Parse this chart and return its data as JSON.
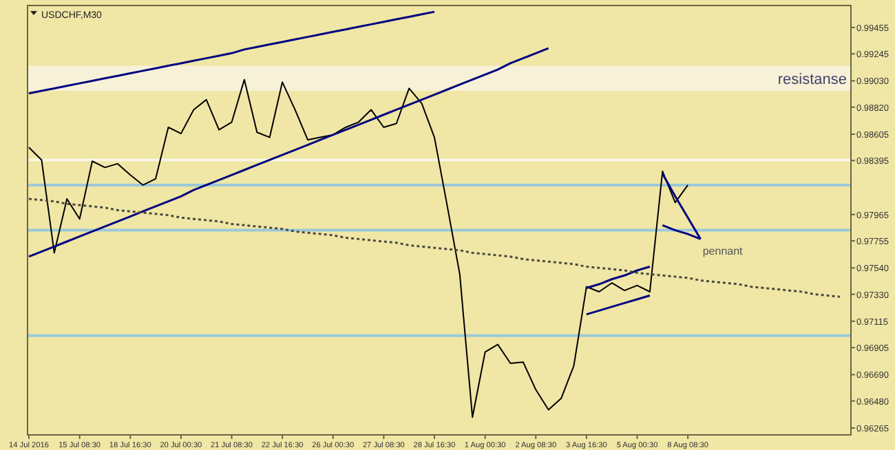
{
  "chart_data": {
    "type": "line",
    "title": "USDCHF,M30",
    "marker": "none",
    "grid": false,
    "categories": [
      "14 Jul 2016",
      null,
      null,
      null,
      "15 Jul 08:30",
      null,
      null,
      null,
      "18 Jul 16:30",
      null,
      null,
      null,
      "20 Jul 00:30",
      null,
      null,
      null,
      "21 Jul 08:30",
      null,
      null,
      null,
      "22 Jul 16:30",
      null,
      null,
      null,
      "26 Jul 00:30",
      null,
      null,
      null,
      "27 Jul 08:30",
      null,
      null,
      null,
      "28 Jul 16:30",
      null,
      null,
      null,
      "1 Aug 00:30",
      null,
      null,
      null,
      "2 Aug 08:30",
      null,
      null,
      null,
      "3 Aug 16:30",
      null,
      null,
      null,
      "5 Aug 00:30",
      null,
      null,
      null,
      "8 Aug 08:30",
      null,
      null,
      null,
      null,
      null,
      null,
      null,
      null,
      null,
      null,
      null,
      null
    ],
    "ylim": [
      0.9621,
      0.9963
    ],
    "yticks": [
      {
        "value": 0.99455,
        "label": "0.99455"
      },
      {
        "value": 0.99245,
        "label": "0.99245"
      },
      {
        "value": 0.9903,
        "label": "0.99030"
      },
      {
        "value": 0.9882,
        "label": "0.98820"
      },
      {
        "value": 0.98605,
        "label": "0.98605"
      },
      {
        "value": 0.98395,
        "label": "0.98395"
      },
      {
        "value": 0.97965,
        "label": "0.97965"
      },
      {
        "value": 0.97755,
        "label": "0.97755"
      },
      {
        "value": 0.9754,
        "label": "0.97540"
      },
      {
        "value": 0.9733,
        "label": "0.97330"
      },
      {
        "value": 0.97115,
        "label": "0.97115"
      },
      {
        "value": 0.96905,
        "label": "0.96905"
      },
      {
        "value": 0.9669,
        "label": "0.96690"
      },
      {
        "value": 0.9648,
        "label": "0.96480"
      },
      {
        "value": 0.96265,
        "label": "0.96265"
      }
    ],
    "series": [
      {
        "color": "#000000",
        "line_style": "solid",
        "values": [
          0.985,
          0.984,
          0.9766,
          0.9809,
          0.9793,
          0.9839,
          0.9834,
          0.9837,
          0.9828,
          0.982,
          0.9825,
          0.9866,
          0.9861,
          0.988,
          0.9888,
          0.9864,
          0.987,
          0.9904,
          0.9862,
          0.9858,
          0.9902,
          0.988,
          0.9856,
          0.9858,
          0.986,
          0.9866,
          0.987,
          0.988,
          0.9866,
          0.9869,
          0.9897,
          0.9885,
          0.9858,
          0.9804,
          0.9749,
          0.9635,
          0.9687,
          0.9693,
          0.9678,
          0.9679,
          0.9657,
          0.9641,
          0.965,
          0.9676,
          0.9739,
          0.9735,
          0.9742,
          0.9736,
          0.974,
          0.9735,
          0.9831,
          0.9806,
          0.982,
          null,
          null,
          null,
          null,
          null,
          null,
          null,
          null,
          null,
          null,
          null,
          null
        ]
      },
      {
        "color": "#000080",
        "line_style": "solid",
        "values": [
          0.9893,
          0.9895,
          0.9897,
          0.9899,
          0.9901,
          0.9903,
          0.9905,
          0.9907,
          0.9909,
          0.9911,
          0.9913,
          0.9915,
          0.9917,
          0.9919,
          0.9921,
          0.9923,
          0.9925,
          0.9928,
          0.993,
          0.9932,
          0.9934,
          0.9936,
          0.9938,
          0.994,
          0.9942,
          0.9944,
          0.9946,
          0.9948,
          0.995,
          0.9952,
          0.9954,
          0.9956,
          0.9958,
          null,
          null,
          null,
          null,
          null,
          null,
          null,
          null,
          null,
          null,
          null,
          null,
          null,
          null,
          null,
          null,
          null,
          null,
          null,
          null,
          null,
          null,
          null,
          null,
          null,
          null,
          null,
          null,
          null,
          null,
          null,
          null
        ]
      },
      {
        "color": "#000080",
        "line_style": "solid",
        "values": [
          0.9763,
          0.9767,
          0.9771,
          0.9775,
          0.9779,
          0.9783,
          0.9787,
          0.9791,
          0.9795,
          0.9799,
          0.9803,
          0.9807,
          0.9811,
          0.9816,
          0.982,
          0.9824,
          0.9828,
          0.9832,
          0.9836,
          0.984,
          0.9844,
          0.9848,
          0.9852,
          0.9856,
          0.986,
          0.9864,
          0.9868,
          0.9872,
          0.9876,
          0.988,
          0.9884,
          0.9888,
          0.9892,
          0.9896,
          0.99,
          0.9904,
          0.9908,
          0.9912,
          0.9917,
          0.9921,
          0.9925,
          0.9929,
          null,
          null,
          null,
          null,
          null,
          null,
          null,
          null,
          null,
          null,
          null,
          null,
          null,
          null,
          null,
          null,
          null,
          null,
          null,
          null,
          null,
          null,
          null
        ]
      },
      {
        "color": "#000080",
        "line_style": "solid",
        "values": [
          null,
          null,
          null,
          null,
          null,
          null,
          null,
          null,
          null,
          null,
          null,
          null,
          null,
          null,
          null,
          null,
          null,
          null,
          null,
          null,
          null,
          null,
          null,
          null,
          null,
          null,
          null,
          null,
          null,
          null,
          null,
          null,
          null,
          null,
          null,
          null,
          null,
          null,
          null,
          null,
          null,
          null,
          null,
          null,
          0.9738,
          0.9741,
          0.9745,
          0.9748,
          0.9752,
          0.9755,
          null,
          null,
          null,
          null,
          null,
          null,
          null,
          null,
          null,
          null,
          null,
          null,
          null,
          null,
          null
        ]
      },
      {
        "color": "#000080",
        "line_style": "solid",
        "values": [
          null,
          null,
          null,
          null,
          null,
          null,
          null,
          null,
          null,
          null,
          null,
          null,
          null,
          null,
          null,
          null,
          null,
          null,
          null,
          null,
          null,
          null,
          null,
          null,
          null,
          null,
          null,
          null,
          null,
          null,
          null,
          null,
          null,
          null,
          null,
          null,
          null,
          null,
          null,
          null,
          null,
          null,
          null,
          null,
          0.9717,
          0.972,
          0.9723,
          0.9726,
          0.9729,
          0.9732,
          null,
          null,
          null,
          null,
          null,
          null,
          null,
          null,
          null,
          null,
          null,
          null,
          null,
          null,
          null
        ]
      },
      {
        "color": "#000080",
        "line_style": "solid",
        "values": [
          null,
          null,
          null,
          null,
          null,
          null,
          null,
          null,
          null,
          null,
          null,
          null,
          null,
          null,
          null,
          null,
          null,
          null,
          null,
          null,
          null,
          null,
          null,
          null,
          null,
          null,
          null,
          null,
          null,
          null,
          null,
          null,
          null,
          null,
          null,
          null,
          null,
          null,
          null,
          null,
          null,
          null,
          null,
          null,
          null,
          null,
          null,
          null,
          null,
          null,
          0.9829,
          0.9811,
          0.9794,
          0.9777,
          null,
          null,
          null,
          null,
          null,
          null,
          null,
          null,
          null,
          null,
          null
        ]
      },
      {
        "color": "#000080",
        "line_style": "solid",
        "values": [
          null,
          null,
          null,
          null,
          null,
          null,
          null,
          null,
          null,
          null,
          null,
          null,
          null,
          null,
          null,
          null,
          null,
          null,
          null,
          null,
          null,
          null,
          null,
          null,
          null,
          null,
          null,
          null,
          null,
          null,
          null,
          null,
          null,
          null,
          null,
          null,
          null,
          null,
          null,
          null,
          null,
          null,
          null,
          null,
          null,
          null,
          null,
          null,
          null,
          null,
          0.9788,
          0.9784,
          0.9781,
          0.9777,
          null,
          null,
          null,
          null,
          null,
          null,
          null,
          null,
          null,
          null,
          null
        ]
      },
      {
        "color": "#4a4a3a",
        "line_style": "dotted",
        "values": [
          0.9809,
          0.9808,
          0.9807,
          0.9805,
          0.9804,
          0.9803,
          0.9802,
          0.98,
          0.9799,
          0.9798,
          0.9797,
          0.9796,
          0.9794,
          0.9793,
          0.9792,
          0.9791,
          0.9789,
          0.9788,
          0.9787,
          0.9786,
          0.9785,
          0.9783,
          0.9782,
          0.9781,
          0.978,
          0.9778,
          0.9777,
          0.9776,
          0.9775,
          0.9774,
          0.9772,
          0.9771,
          0.977,
          0.9769,
          0.9768,
          0.9766,
          0.9765,
          0.9764,
          0.9763,
          0.9761,
          0.976,
          0.9759,
          0.9758,
          0.9757,
          0.9755,
          0.9754,
          0.9753,
          0.9752,
          0.975,
          0.9749,
          0.9748,
          0.9747,
          0.9746,
          0.9744,
          0.9743,
          0.9742,
          0.9741,
          0.9739,
          0.9738,
          0.9737,
          0.9736,
          0.9735,
          0.9733,
          0.9732,
          0.9731
        ]
      }
    ],
    "ref_lines": [
      {
        "axis": "y",
        "value": 0.984,
        "color": "#fbf6e4"
      },
      {
        "axis": "y",
        "value": 0.982,
        "color": "#9cc8d8"
      },
      {
        "axis": "y",
        "value": 0.9784,
        "color": "#9cc8d8"
      },
      {
        "axis": "y",
        "value": 0.97,
        "color": "#9cc8d8"
      }
    ],
    "bands": [
      {
        "axis": "y",
        "from": 0.9895,
        "to": 0.9915,
        "label": "resistanse",
        "color": "#f7f1d8"
      }
    ],
    "annotations": [
      "pennant"
    ]
  }
}
